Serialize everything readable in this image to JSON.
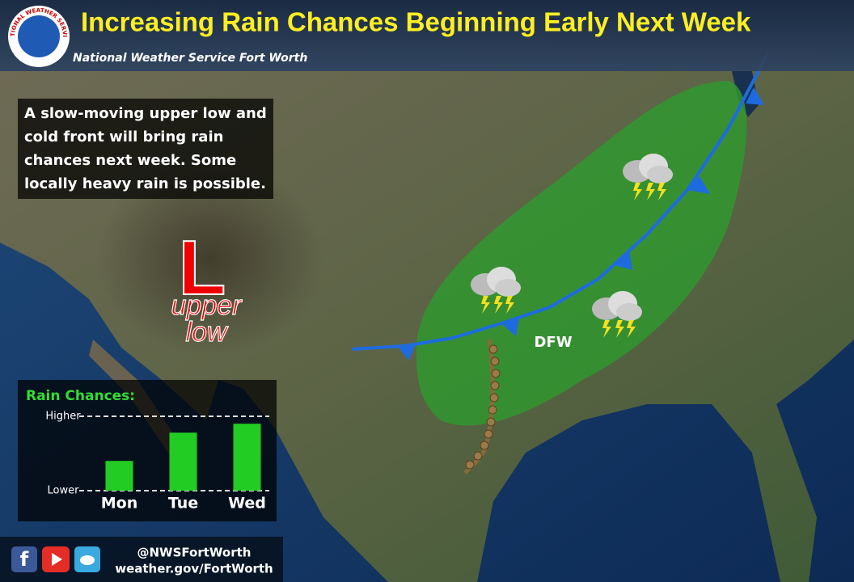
{
  "header": {
    "title": "Increasing Rain Chances Beginning Early Next Week",
    "subtitle": "National Weather Service Fort Worth",
    "logo_text": "NATIONAL WEATHER SERVICE"
  },
  "info_box": {
    "text": "A slow-moving upper low and cold front will bring rain chances next week. Some locally heavy rain is possible."
  },
  "map_labels": {
    "low_symbol": "L",
    "low_label": "upper low",
    "city": "DFW"
  },
  "chart_data": {
    "type": "bar",
    "title": "Rain Chances:",
    "categories": [
      "Mon",
      "Tue",
      "Wed"
    ],
    "values": [
      40,
      78,
      90
    ],
    "color": "#22cc22",
    "ylim": [
      0,
      100
    ],
    "yticks": [
      {
        "value": 0,
        "label": "Lower"
      },
      {
        "value": 100,
        "label": "Higher"
      }
    ],
    "grid": true
  },
  "footer": {
    "handle": "@NWSFortWorth",
    "url": "weather.gov/FortWorth"
  }
}
